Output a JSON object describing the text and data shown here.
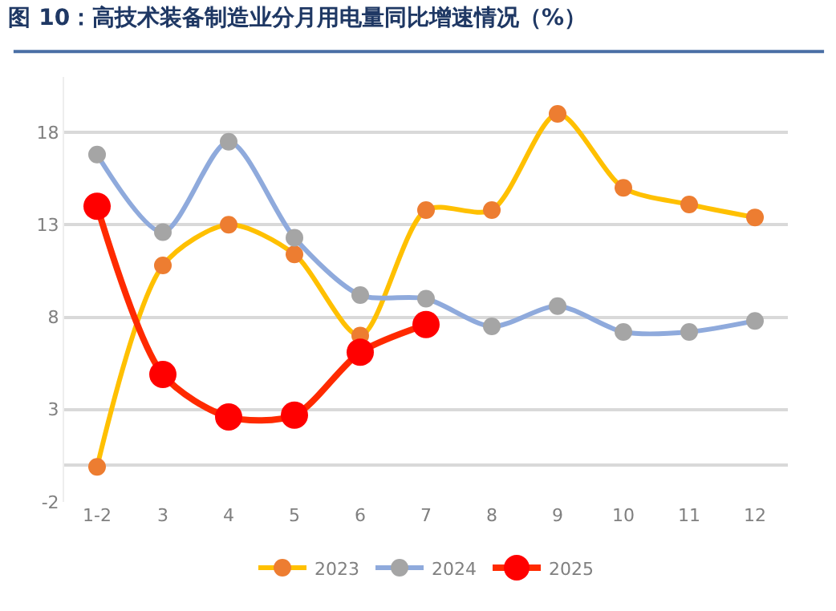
{
  "chart_data": {
    "type": "line",
    "title": "图 10：高技术装备制造业分月用电量同比增速情况（%）",
    "categories": [
      "1-2",
      "3",
      "4",
      "5",
      "6",
      "7",
      "8",
      "9",
      "10",
      "11",
      "12"
    ],
    "series": [
      {
        "name": "2023",
        "color": "#ffc000",
        "colors": [
          "#ed7d31",
          "#ed7d31",
          "#ed7d31",
          "#ed7d31",
          "#ed7d31",
          "#ed7d31",
          "#ed7d31",
          "#ed7d31",
          "#ed7d31",
          "#ed7d31",
          "#ed7d31"
        ],
        "values": [
          -0.1,
          10.8,
          13.0,
          11.4,
          7.0,
          13.8,
          13.8,
          19.0,
          15.0,
          14.1,
          13.4
        ]
      },
      {
        "name": "2024",
        "color": "#8faadc",
        "colors": [
          "#a5a5a5",
          "#a5a5a5",
          "#a5a5a5",
          "#a5a5a5",
          "#a5a5a5",
          "#a5a5a5",
          "#a5a5a5",
          "#a5a5a5",
          "#a5a5a5",
          "#a5a5a5",
          "#a5a5a5"
        ],
        "values": [
          16.8,
          12.6,
          17.5,
          12.3,
          9.2,
          9.0,
          7.5,
          8.6,
          7.2,
          7.2,
          7.8
        ]
      },
      {
        "name": "2025",
        "color": "#ff2a00",
        "colors": [
          "#ff0000",
          "#ff0000",
          "#ff0000",
          "#ff0000",
          "#ff0000",
          "#ff0000",
          "#ff0000",
          "#ff0000",
          "#ff0000",
          "#ff0000",
          "#ff0000"
        ],
        "values": [
          14.0,
          4.9,
          2.6,
          2.7,
          6.1,
          7.6,
          null,
          null,
          null,
          null,
          null
        ]
      }
    ],
    "ylim": [
      -2,
      21
    ],
    "yticks": [
      -2,
      {
        "value": 0,
        "label": null
      },
      3,
      8,
      13,
      18
    ],
    "grid": "y",
    "legend": "bottom",
    "marker": "circle",
    "line_style": "solid"
  }
}
